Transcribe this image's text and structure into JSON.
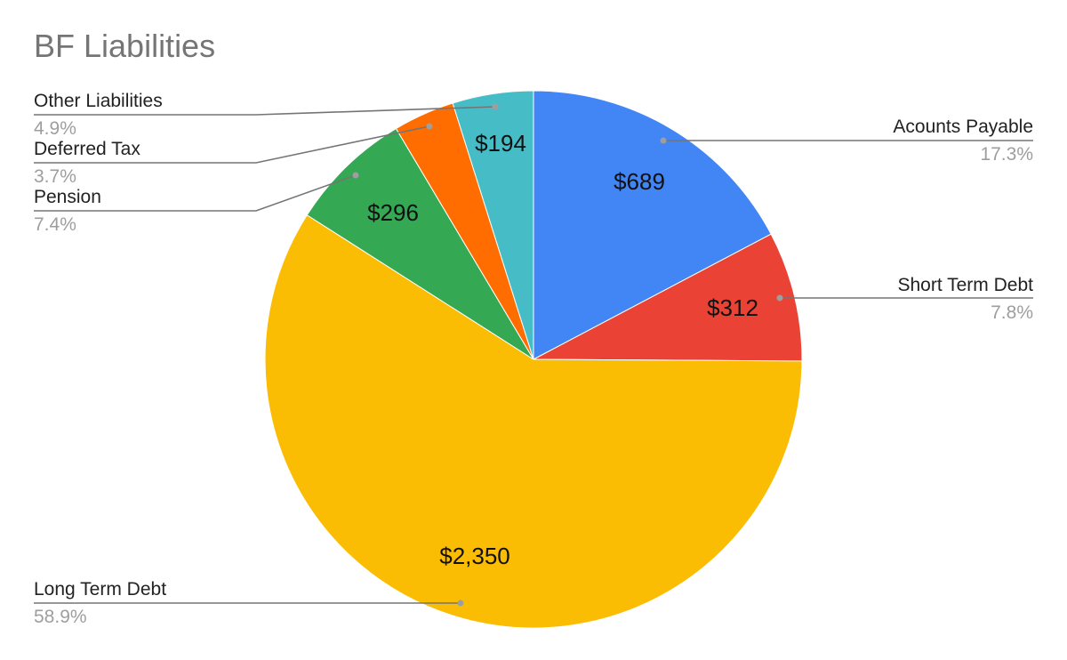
{
  "chart_data": {
    "type": "pie",
    "title": "BF Liabilities",
    "categories": [
      "Acounts Payable",
      "Short Term Debt",
      "Long Term Debt",
      "Pension",
      "Deferred Tax",
      "Other Liabilities"
    ],
    "values": [
      689,
      312,
      2350,
      296,
      147,
      194
    ],
    "value_labels": [
      "$689",
      "$312",
      "$2,350",
      "$296",
      "",
      "$194"
    ],
    "percent_labels": [
      "17.3%",
      "7.8%",
      "58.9%",
      "7.4%",
      "3.7%",
      "4.9%"
    ],
    "colors": [
      "#4285f4",
      "#ea4335",
      "#fbbc04",
      "#34a853",
      "#ff6d01",
      "#46bdc6"
    ],
    "legend": "none",
    "label_style": "callout lines with category name and percentage"
  }
}
